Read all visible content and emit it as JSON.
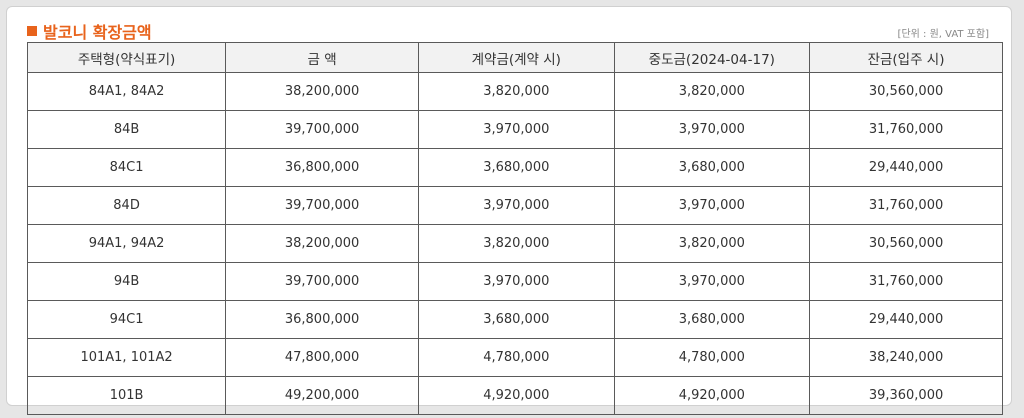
{
  "header": {
    "title": "발코니 확장금액",
    "unit_note": "[단위 : 원, VAT 포함]"
  },
  "table": {
    "columns": [
      "주택형(약식표기)",
      "금 액",
      "계약금(계약 시)",
      "중도금(2024-04-17)",
      "잔금(입주 시)"
    ],
    "rows": [
      [
        "84A1, 84A2",
        "38,200,000",
        "3,820,000",
        "3,820,000",
        "30,560,000"
      ],
      [
        "84B",
        "39,700,000",
        "3,970,000",
        "3,970,000",
        "31,760,000"
      ],
      [
        "84C1",
        "36,800,000",
        "3,680,000",
        "3,680,000",
        "29,440,000"
      ],
      [
        "84D",
        "39,700,000",
        "3,970,000",
        "3,970,000",
        "31,760,000"
      ],
      [
        "94A1, 94A2",
        "38,200,000",
        "3,820,000",
        "3,820,000",
        "30,560,000"
      ],
      [
        "94B",
        "39,700,000",
        "3,970,000",
        "3,970,000",
        "31,760,000"
      ],
      [
        "94C1",
        "36,800,000",
        "3,680,000",
        "3,680,000",
        "29,440,000"
      ],
      [
        "101A1, 101A2",
        "47,800,000",
        "4,780,000",
        "4,780,000",
        "38,240,000"
      ],
      [
        "101B",
        "49,200,000",
        "4,920,000",
        "4,920,000",
        "39,360,000"
      ]
    ]
  },
  "colors": {
    "accent": "#e8631c",
    "header_bg": "#f2f2f2",
    "border": "#5a5a5a"
  }
}
